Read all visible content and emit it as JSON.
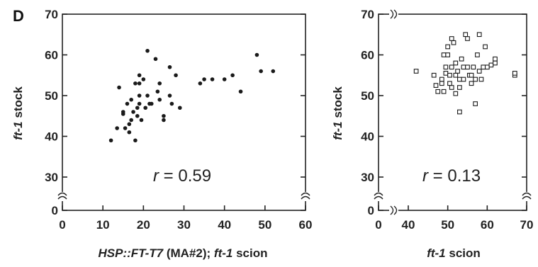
{
  "panel_letter": "D",
  "chart_data": [
    {
      "type": "scatter",
      "marker": "filled-circle",
      "xlabel_parts": [
        "HSP::FT-T7",
        " (MA#2); ",
        "ft-1",
        " scion"
      ],
      "ylabel_parts": [
        "ft-1",
        " stock"
      ],
      "xlim": [
        0,
        60
      ],
      "ylim": [
        0,
        70
      ],
      "axis_break": "y between 0 and 30",
      "xticks": [
        "0",
        "10",
        "20",
        "30",
        "40",
        "50",
        "60"
      ],
      "yticks": [
        "0",
        "30",
        "40",
        "50",
        "60",
        "70"
      ],
      "annotation_parts": [
        "r",
        " = 0.59"
      ],
      "grid": false,
      "points": [
        [
          12,
          39
        ],
        [
          13.5,
          42
        ],
        [
          14,
          52
        ],
        [
          15,
          46
        ],
        [
          15,
          45.5
        ],
        [
          15.5,
          42
        ],
        [
          16,
          48
        ],
        [
          16.5,
          43
        ],
        [
          16.5,
          41
        ],
        [
          17,
          49
        ],
        [
          17,
          44
        ],
        [
          17.5,
          46
        ],
        [
          18,
          39
        ],
        [
          18,
          53
        ],
        [
          18.5,
          45
        ],
        [
          18.5,
          47
        ],
        [
          19,
          53
        ],
        [
          19,
          50
        ],
        [
          19,
          55
        ],
        [
          19,
          48
        ],
        [
          19.5,
          44
        ],
        [
          20,
          54
        ],
        [
          20.5,
          47
        ],
        [
          21,
          50
        ],
        [
          21,
          61
        ],
        [
          21.5,
          48
        ],
        [
          22,
          48
        ],
        [
          23,
          59
        ],
        [
          23.5,
          51
        ],
        [
          24,
          53
        ],
        [
          24,
          49
        ],
        [
          25,
          45
        ],
        [
          25,
          44
        ],
        [
          26.5,
          57
        ],
        [
          26.5,
          50
        ],
        [
          27,
          48
        ],
        [
          28,
          55
        ],
        [
          29,
          47
        ],
        [
          34,
          53
        ],
        [
          35,
          54
        ],
        [
          37,
          54
        ],
        [
          40,
          54
        ],
        [
          42,
          55
        ],
        [
          44,
          51
        ],
        [
          48,
          60
        ],
        [
          49,
          56
        ],
        [
          52,
          56
        ]
      ]
    },
    {
      "type": "scatter",
      "marker": "open-square",
      "xlabel_parts": [
        "ft-1",
        " scion"
      ],
      "ylabel_parts": [
        "ft-1",
        " stock"
      ],
      "xlim": [
        30,
        70
      ],
      "ylim": [
        0,
        70
      ],
      "axis_break": "x between 0 and 40; y between 0 and 30",
      "xticks": [
        "0",
        "40",
        "50",
        "60",
        "70"
      ],
      "yticks": [
        "0",
        "30",
        "40",
        "50",
        "60",
        "70"
      ],
      "annotation_parts": [
        "r",
        " = 0.13"
      ],
      "grid": false,
      "points": [
        [
          42,
          56
        ],
        [
          46.5,
          55
        ],
        [
          47,
          52.5
        ],
        [
          47.5,
          51
        ],
        [
          48.5,
          53
        ],
        [
          48.5,
          54
        ],
        [
          49,
          51
        ],
        [
          49,
          60
        ],
        [
          49.5,
          55.5
        ],
        [
          49.5,
          57
        ],
        [
          50,
          62
        ],
        [
          50,
          60
        ],
        [
          50.5,
          53
        ],
        [
          50.5,
          55
        ],
        [
          51,
          57
        ],
        [
          51,
          52
        ],
        [
          51,
          64
        ],
        [
          51.5,
          63
        ],
        [
          52,
          50.5
        ],
        [
          52,
          55
        ],
        [
          52,
          58
        ],
        [
          52.5,
          56
        ],
        [
          53,
          54
        ],
        [
          53,
          52
        ],
        [
          53,
          46
        ],
        [
          53.5,
          59
        ],
        [
          54,
          54
        ],
        [
          54,
          57
        ],
        [
          54.5,
          65
        ],
        [
          55,
          57
        ],
        [
          55,
          64
        ],
        [
          55.5,
          55
        ],
        [
          56,
          53
        ],
        [
          56,
          55
        ],
        [
          56.5,
          57
        ],
        [
          57,
          54
        ],
        [
          57,
          48
        ],
        [
          57.5,
          60
        ],
        [
          58,
          56
        ],
        [
          58,
          65
        ],
        [
          58.5,
          54
        ],
        [
          59,
          57
        ],
        [
          59.5,
          62
        ],
        [
          60,
          57
        ],
        [
          61,
          57.5
        ],
        [
          62,
          59
        ],
        [
          62,
          58
        ],
        [
          67,
          55
        ],
        [
          67,
          55.5
        ]
      ]
    }
  ]
}
